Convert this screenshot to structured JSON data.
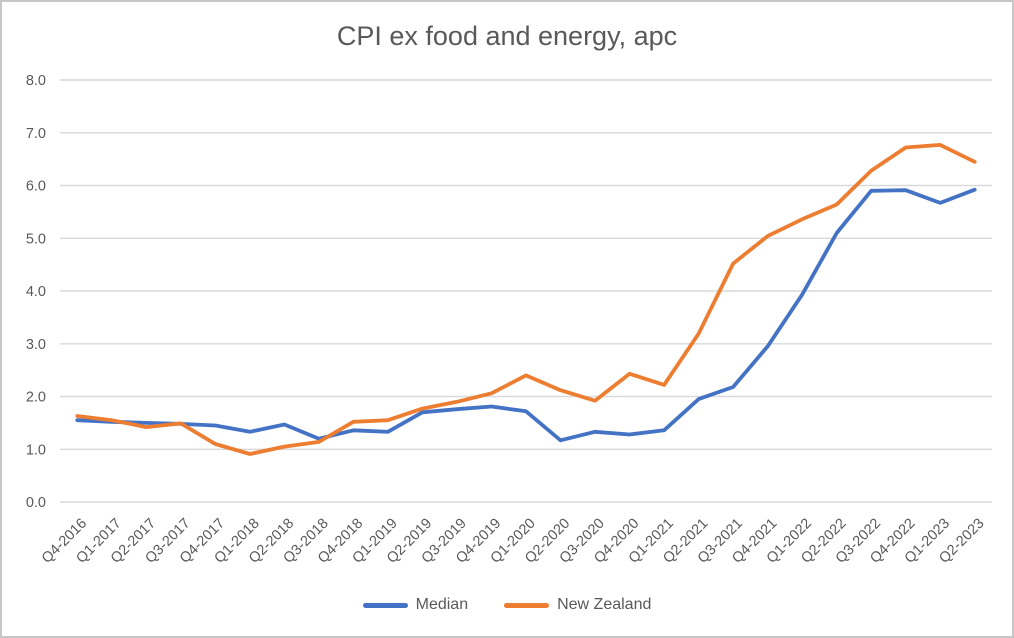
{
  "chart_data": {
    "type": "line",
    "title": "CPI ex food and energy, apc",
    "xlabel": "",
    "ylabel": "",
    "categories": [
      "Q4-2016",
      "Q1-2017",
      "Q2-2017",
      "Q3-2017",
      "Q4-2017",
      "Q1-2018",
      "Q2-2018",
      "Q3-2018",
      "Q4-2018",
      "Q1-2019",
      "Q2-2019",
      "Q3-2019",
      "Q4-2019",
      "Q1-2020",
      "Q2-2020",
      "Q3-2020",
      "Q4-2020",
      "Q1-2021",
      "Q2-2021",
      "Q3-2021",
      "Q4-2021",
      "Q1-2022",
      "Q2-2022",
      "Q3-2022",
      "Q4-2022",
      "Q1-2023",
      "Q2-2023"
    ],
    "series": [
      {
        "name": "Median",
        "color": "#4472C4",
        "values": [
          1.55,
          1.52,
          1.5,
          1.48,
          1.45,
          1.33,
          1.47,
          1.2,
          1.36,
          1.33,
          1.7,
          1.76,
          1.81,
          1.72,
          1.17,
          1.33,
          1.28,
          1.36,
          1.95,
          2.18,
          2.95,
          3.93,
          5.1,
          5.9,
          5.91,
          5.67,
          5.92
        ]
      },
      {
        "name": "New Zealand",
        "color": "#ED7D31",
        "values": [
          1.63,
          1.55,
          1.42,
          1.49,
          1.1,
          0.91,
          1.05,
          1.14,
          1.52,
          1.55,
          1.77,
          1.9,
          2.06,
          2.4,
          2.12,
          1.92,
          2.43,
          2.22,
          3.19,
          4.52,
          5.04,
          5.36,
          5.64,
          6.28,
          6.72,
          6.77,
          6.45
        ]
      }
    ],
    "ylim": [
      0,
      8
    ],
    "y_tick_labels": [
      "0.0",
      "1.0",
      "2.0",
      "3.0",
      "4.0",
      "5.0",
      "6.0",
      "7.0",
      "8.0"
    ],
    "grid": "horizontal-gridlines-only",
    "legend_position": "bottom"
  },
  "colors": {
    "gridline": "#D9D9D9",
    "tick_text": "#595959",
    "title_text": "#595959",
    "frame_border": "#C6C6C6"
  }
}
